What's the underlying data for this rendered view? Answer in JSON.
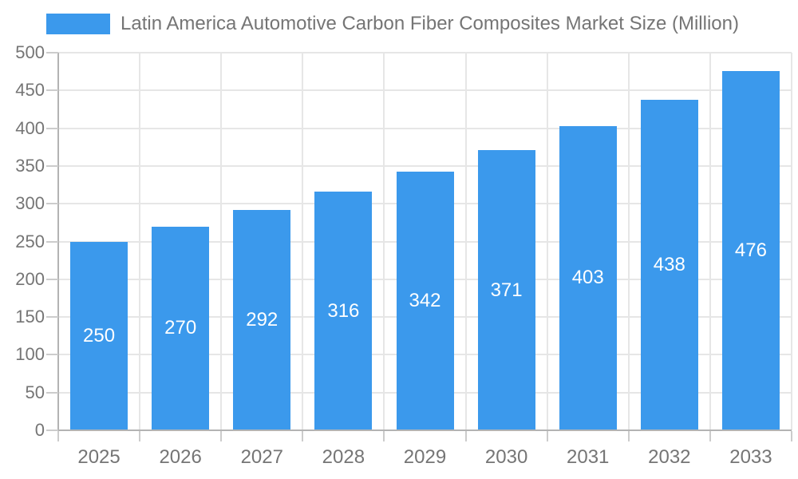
{
  "legend": {
    "label": "Latin America Automotive Carbon Fiber Composites Market Size (Million)"
  },
  "colors": {
    "bar": "#3B99EC",
    "value_label": "#ffffff",
    "axis_text": "#757575",
    "gridline": "#e6e6e6",
    "axis_line": "#b3b3b3"
  },
  "chart_data": {
    "type": "bar",
    "title": "Latin America Automotive Carbon Fiber Composites Market Size (Million)",
    "categories": [
      "2025",
      "2026",
      "2027",
      "2028",
      "2029",
      "2030",
      "2031",
      "2032",
      "2033"
    ],
    "values": [
      250,
      270,
      292,
      316,
      342,
      371,
      403,
      438,
      476
    ],
    "xlabel": "",
    "ylabel": "",
    "ylim": [
      0,
      500
    ],
    "ytick_step": 50,
    "ytick_labels": [
      "0",
      "50",
      "100",
      "150",
      "200",
      "250",
      "300",
      "350",
      "400",
      "450",
      "500"
    ],
    "grid": true,
    "legend_position": "top-left",
    "bar_value_labels": true
  }
}
